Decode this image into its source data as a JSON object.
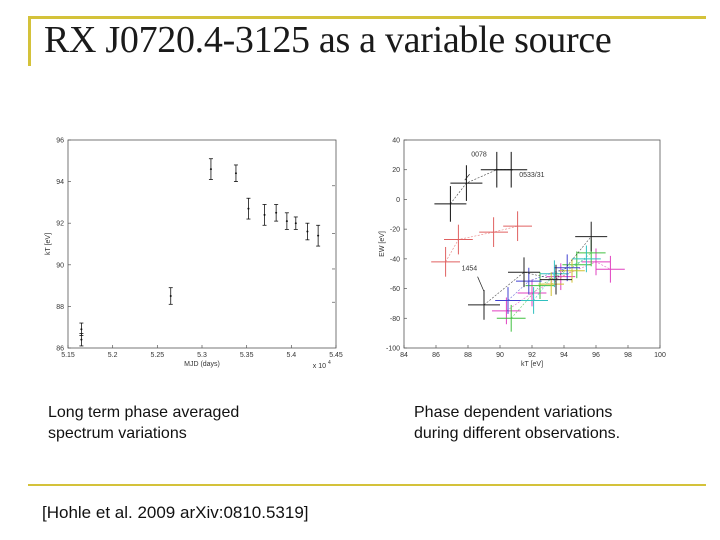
{
  "slide": {
    "title": "RX J0720.4-3125 as a variable source",
    "left_caption_line1": "Long term phase averaged",
    "left_caption_line2": "spectrum variations",
    "right_caption_line1": "Phase dependent variations",
    "right_caption_line2": "during different observations.",
    "citation": "[Hohle et al. 2009 arXiv:0810.5319]",
    "accent_color": "#d4c23a"
  },
  "chart_data": [
    {
      "type": "scatter",
      "xlabel": "MJD (days)",
      "ylabel": "kT [eV]",
      "x_multiplier": "x 10",
      "x_multiplier_exp": "4",
      "xlim": [
        5.15,
        5.45
      ],
      "ylim": [
        86,
        96
      ],
      "x_tick_labels": [
        "5.15",
        "5.2",
        "5.25",
        "5.3",
        "5.35",
        "5.4",
        "5.45"
      ],
      "y_tick_labels": [
        "96",
        "94",
        "92",
        "90",
        "88",
        "86"
      ],
      "x": [
        5.165,
        5.165,
        5.265,
        5.31,
        5.338,
        5.352,
        5.37,
        5.383,
        5.395,
        5.405,
        5.418,
        5.43
      ],
      "y": [
        86.4,
        86.9,
        88.5,
        94.6,
        94.4,
        92.7,
        92.4,
        92.5,
        92.1,
        92.0,
        91.6,
        91.4
      ],
      "yerr": [
        0.3,
        0.3,
        0.4,
        0.5,
        0.4,
        0.5,
        0.5,
        0.4,
        0.4,
        0.3,
        0.4,
        0.5
      ]
    },
    {
      "type": "scatter",
      "xlabel": "kT [eV]",
      "ylabel": "EW [eV]",
      "xlim": [
        84,
        100
      ],
      "ylim": [
        -100,
        40
      ],
      "x_tick_labels": [
        "84",
        "86",
        "88",
        "90",
        "92",
        "94",
        "96",
        "98",
        "100"
      ],
      "y_tick_labels": [
        "40",
        "20",
        "0",
        "-20",
        "-40",
        "-60",
        "-80",
        "-100"
      ],
      "annotations": [
        "0078",
        "0533/31",
        "1454"
      ],
      "series": [
        {
          "name": "0078",
          "color": "#111111",
          "x": [
            86.9,
            87.9,
            89.8,
            90.7
          ],
          "y": [
            -3,
            11,
            20,
            20
          ],
          "xerr": 1.0,
          "yerr": 12
        },
        {
          "name": "0533/31",
          "color": "#e06060",
          "x": [
            86.6,
            87.4,
            89.6,
            91.1
          ],
          "y": [
            -42,
            -27,
            -22,
            -18
          ],
          "xerr": 0.9,
          "yerr": 10
        },
        {
          "name": "pink",
          "color": "#e040c0",
          "x": [
            90.4,
            92.0,
            93.8,
            96.0,
            96.9
          ],
          "y": [
            -75,
            -63,
            -52,
            -42,
            -47
          ],
          "xerr": 0.9,
          "yerr": 9
        },
        {
          "name": "green",
          "color": "#40c040",
          "x": [
            90.7,
            92.5,
            94.8,
            95.7
          ],
          "y": [
            -80,
            -58,
            -44,
            -36
          ],
          "xerr": 0.9,
          "yerr": 9
        },
        {
          "name": "cyan",
          "color": "#30c0c0",
          "x": [
            92.1,
            93.4,
            95.4
          ],
          "y": [
            -68,
            -50,
            -40
          ],
          "xerr": 0.9,
          "yerr": 9
        },
        {
          "name": "yellow",
          "color": "#d0c030",
          "x": [
            93.2,
            94.5
          ],
          "y": [
            -57,
            -48
          ],
          "xerr": 0.8,
          "yerr": 8
        },
        {
          "name": "blue",
          "color": "#4040d0",
          "x": [
            90.5,
            91.8,
            94.2
          ],
          "y": [
            -68,
            -55,
            -46
          ],
          "xerr": 0.8,
          "yerr": 9
        },
        {
          "name": "1454",
          "color": "#222222",
          "x": [
            89.0,
            91.5,
            93.5,
            95.7
          ],
          "y": [
            -71,
            -49,
            -54,
            -25
          ],
          "xerr": 1.0,
          "yerr": 10
        }
      ]
    }
  ]
}
